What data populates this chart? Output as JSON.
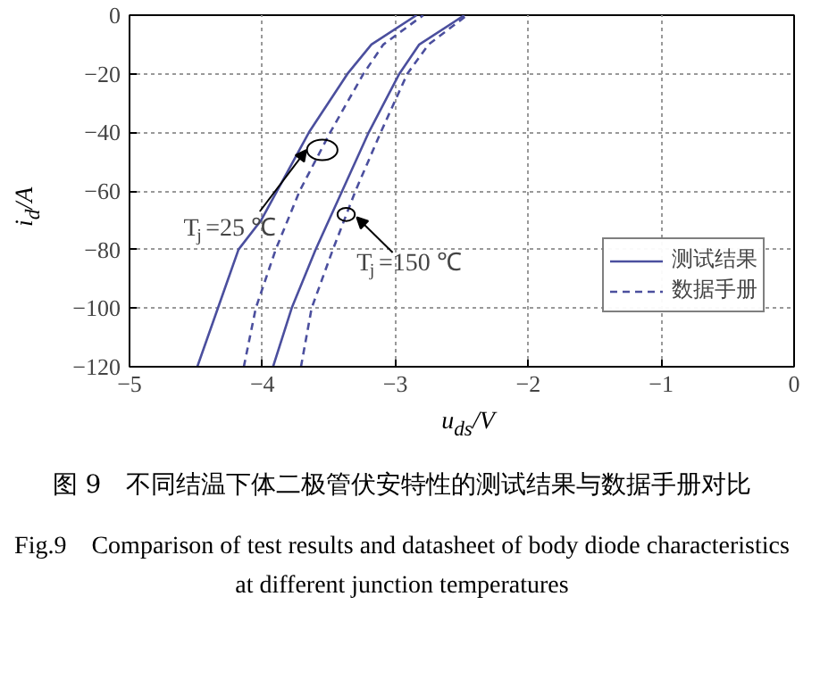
{
  "chart_data": {
    "type": "line",
    "xlabel": "u$_{ds}$/V",
    "ylabel": "i$_{d}$/A",
    "xlim": [
      -5,
      0
    ],
    "ylim": [
      -120,
      0
    ],
    "xticks": [
      -5,
      -4,
      -3,
      -2,
      -1,
      0
    ],
    "yticks": [
      -120,
      -100,
      -80,
      -60,
      -40,
      -20,
      0
    ],
    "grid": true,
    "legend": "right",
    "series": [
      {
        "name": "测试结果",
        "color": "#4b4f9e",
        "line_style": "solid",
        "x": [
          -4.49,
          -4.18,
          -4.01,
          -3.65,
          -3.36,
          -3.18,
          -2.84
        ],
        "values": [
          -120,
          -80,
          -70,
          -40,
          -20,
          -10,
          0
        ]
      },
      {
        "name": "数据手册",
        "color": "#4b4f9e",
        "line_style": "dashed",
        "x": [
          -4.14,
          -4.05,
          -3.9,
          -3.72,
          -3.49,
          -3.24,
          -3.09,
          -2.79
        ],
        "values": [
          -120,
          -100,
          -80,
          -60,
          -40,
          -20,
          -10,
          0
        ]
      },
      {
        "color": "#4b4f9e",
        "line_style": "solid",
        "x": [
          -3.92,
          -3.78,
          -3.6,
          -3.4,
          -3.2,
          -2.97,
          -2.82,
          -2.48
        ],
        "values": [
          -120,
          -100,
          -80,
          -60,
          -40,
          -20,
          -10,
          0
        ]
      },
      {
        "color": "#4b4f9e",
        "line_style": "dashed",
        "x": [
          -3.71,
          -3.63,
          -3.47,
          -3.3,
          -3.11,
          -2.91,
          -2.75,
          -2.46
        ],
        "values": [
          -120,
          -100,
          -80,
          -60,
          -40,
          -20,
          -10,
          0
        ]
      }
    ],
    "annotations": [
      {
        "text": "T$_{j}$=25 ℃",
        "x": -3.67,
        "y": -46
      },
      {
        "text": "T$_{j}$=150 ℃",
        "x": -3.37,
        "y": -68
      },
      "图 9　不同结温下体二极管伏安特性的测试结果与数据手册对比",
      "Fig.9　Comparison of test results and datasheet of body diode characteristics at different junction temperatures"
    ]
  }
}
